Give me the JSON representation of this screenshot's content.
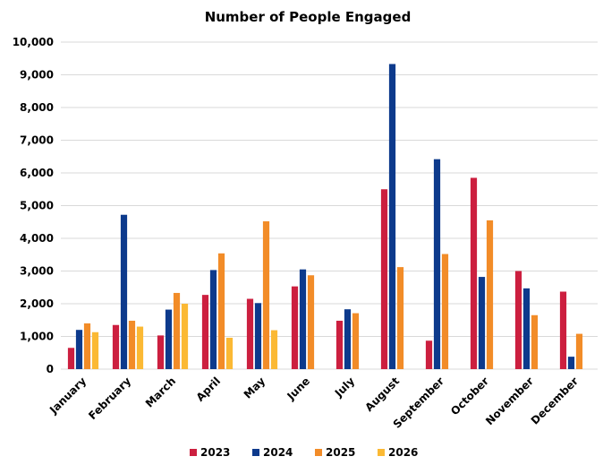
{
  "chart_data": {
    "type": "bar",
    "title": "Number of People Engaged",
    "xlabel": "",
    "ylabel": "",
    "ylim": [
      0,
      10000
    ],
    "yticks": [
      0,
      1000,
      2000,
      3000,
      4000,
      5000,
      6000,
      7000,
      8000,
      9000,
      10000
    ],
    "ytick_labels": [
      "0",
      "1,000",
      "2,000",
      "3,000",
      "4,000",
      "5,000",
      "6,000",
      "7,000",
      "8,000",
      "9,000",
      "10,000"
    ],
    "grid": true,
    "legend_position": "bottom",
    "categories": [
      "January",
      "February",
      "March",
      "April",
      "May",
      "June",
      "July",
      "August",
      "September",
      "October",
      "November",
      "December"
    ],
    "series": [
      {
        "name": "2023",
        "color": "#cc1f3f",
        "values": [
          650,
          1350,
          1030,
          2270,
          2150,
          2530,
          1480,
          5500,
          870,
          5850,
          3000,
          2370
        ]
      },
      {
        "name": "2024",
        "color": "#0d3a8c",
        "values": [
          1200,
          4720,
          1820,
          3030,
          2020,
          3050,
          1830,
          9330,
          6420,
          2820,
          2470,
          380
        ]
      },
      {
        "name": "2025",
        "color": "#f28c28",
        "values": [
          1400,
          1480,
          2330,
          3540,
          4520,
          2870,
          1710,
          3120,
          3520,
          4550,
          1650,
          1080
        ]
      },
      {
        "name": "2026",
        "color": "#fbb934",
        "values": [
          1130,
          1300,
          2000,
          960,
          1190,
          null,
          null,
          null,
          null,
          null,
          null,
          null
        ]
      }
    ]
  }
}
